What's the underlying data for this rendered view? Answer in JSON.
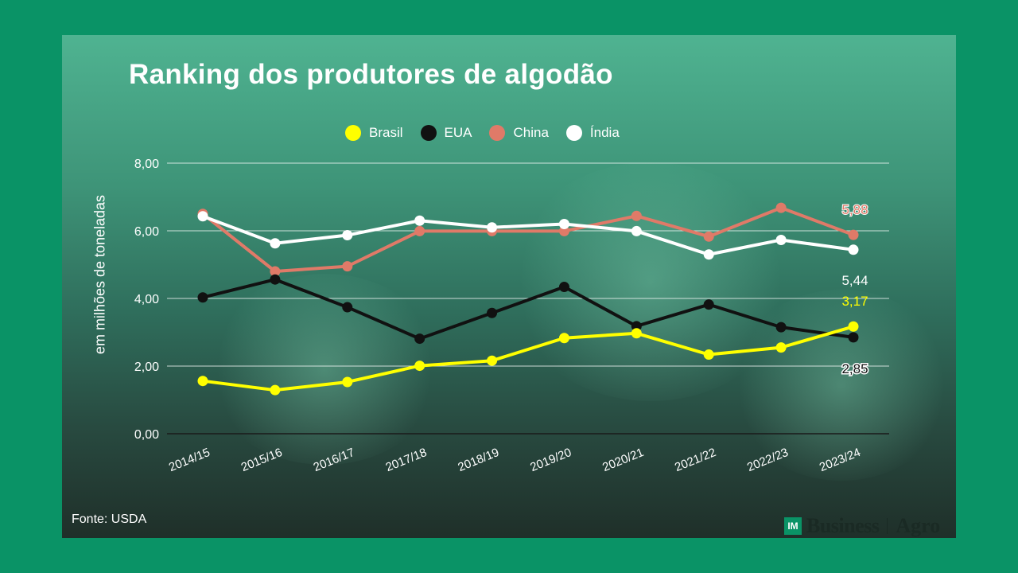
{
  "title": "Ranking dos produtores de algodão",
  "source": "Fonte: USDA",
  "brand": {
    "badge": "IM",
    "name": "Business",
    "sub": "Agro"
  },
  "colors": {
    "Brasil": "#ffff00",
    "EUA": "#111111",
    "China": "#e07a68",
    "Índia": "#ffffff",
    "background": "#0a9366"
  },
  "chart_data": {
    "type": "line",
    "title": "Ranking dos produtores de algodão",
    "ylabel": "em milhões de toneladas",
    "xlabel": "",
    "ylim": [
      0,
      8
    ],
    "yticks": [
      "0,00",
      "2,00",
      "4,00",
      "6,00",
      "8,00"
    ],
    "grid": true,
    "legend_position": "top",
    "categories": [
      "2014/15",
      "2015/16",
      "2016/17",
      "2017/18",
      "2018/19",
      "2019/20",
      "2020/21",
      "2021/22",
      "2022/23",
      "2023/24"
    ],
    "series": [
      {
        "name": "Brasil",
        "values": [
          1.56,
          1.29,
          1.53,
          2.01,
          2.16,
          2.83,
          2.97,
          2.34,
          2.55,
          3.17
        ]
      },
      {
        "name": "EUA",
        "values": [
          4.03,
          4.56,
          3.74,
          2.81,
          3.57,
          4.34,
          3.18,
          3.82,
          3.15,
          2.85
        ]
      },
      {
        "name": "China",
        "values": [
          6.5,
          4.8,
          4.95,
          5.99,
          5.99,
          5.99,
          6.44,
          5.83,
          6.68,
          5.88
        ]
      },
      {
        "name": "Índia",
        "values": [
          6.43,
          5.63,
          5.87,
          6.3,
          6.1,
          6.2,
          5.99,
          5.3,
          5.73,
          5.44
        ]
      }
    ],
    "end_labels": [
      {
        "series": "China",
        "text": "5,88"
      },
      {
        "series": "Índia",
        "text": "5,44"
      },
      {
        "series": "Brasil",
        "text": "3,17"
      },
      {
        "series": "EUA",
        "text": "2,85"
      }
    ]
  }
}
